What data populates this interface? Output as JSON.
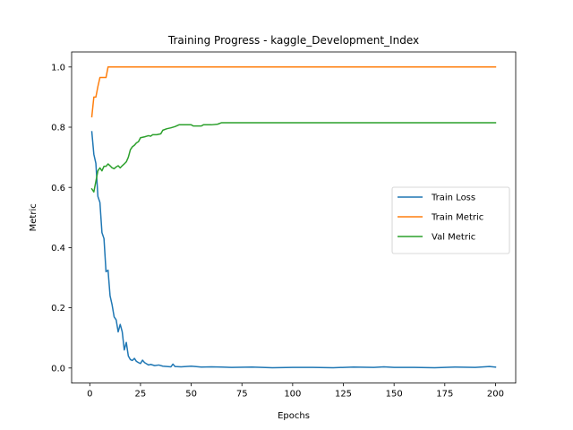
{
  "chart_data": {
    "type": "line",
    "title": "Training Progress - kaggle_Development_Index",
    "xlabel": "Epochs",
    "ylabel": "Metric",
    "xlim": [
      -8.95,
      209.95
    ],
    "ylim": [
      -0.05,
      1.05
    ],
    "xticks": [
      0,
      25,
      50,
      75,
      100,
      125,
      150,
      175,
      200
    ],
    "xtick_labels": [
      "0",
      "25",
      "50",
      "75",
      "100",
      "125",
      "150",
      "175",
      "200"
    ],
    "yticks": [
      0.0,
      0.2,
      0.4,
      0.6,
      0.8,
      1.0
    ],
    "ytick_labels": [
      "0.0",
      "0.2",
      "0.4",
      "0.6",
      "0.8",
      "1.0"
    ],
    "grid": false,
    "legend_position": "center-right",
    "series": [
      {
        "name": "Train Loss",
        "color": "#1f77b4",
        "points": [
          [
            1,
            0.785
          ],
          [
            2,
            0.71
          ],
          [
            3,
            0.68
          ],
          [
            4,
            0.57
          ],
          [
            5,
            0.55
          ],
          [
            6,
            0.45
          ],
          [
            7,
            0.43
          ],
          [
            8,
            0.32
          ],
          [
            9,
            0.325
          ],
          [
            10,
            0.24
          ],
          [
            11,
            0.21
          ],
          [
            12,
            0.17
          ],
          [
            13,
            0.16
          ],
          [
            14,
            0.12
          ],
          [
            15,
            0.145
          ],
          [
            16,
            0.12
          ],
          [
            17,
            0.06
          ],
          [
            18,
            0.085
          ],
          [
            19,
            0.04
          ],
          [
            20,
            0.028
          ],
          [
            21,
            0.025
          ],
          [
            22,
            0.032
          ],
          [
            23,
            0.022
          ],
          [
            24,
            0.018
          ],
          [
            25,
            0.015
          ],
          [
            26,
            0.026
          ],
          [
            27,
            0.018
          ],
          [
            28,
            0.014
          ],
          [
            29,
            0.01
          ],
          [
            30,
            0.012
          ],
          [
            32,
            0.008
          ],
          [
            34,
            0.01
          ],
          [
            36,
            0.006
          ],
          [
            38,
            0.005
          ],
          [
            40,
            0.004
          ],
          [
            41,
            0.013
          ],
          [
            42,
            0.005
          ],
          [
            45,
            0.004
          ],
          [
            50,
            0.006
          ],
          [
            55,
            0.003
          ],
          [
            60,
            0.004
          ],
          [
            65,
            0.003
          ],
          [
            70,
            0.002
          ],
          [
            80,
            0.003
          ],
          [
            90,
            0.001
          ],
          [
            100,
            0.002
          ],
          [
            110,
            0.002
          ],
          [
            120,
            0.001
          ],
          [
            130,
            0.003
          ],
          [
            140,
            0.002
          ],
          [
            145,
            0.004
          ],
          [
            150,
            0.002
          ],
          [
            160,
            0.002
          ],
          [
            170,
            0.001
          ],
          [
            180,
            0.003
          ],
          [
            190,
            0.002
          ],
          [
            197,
            0.005
          ],
          [
            200,
            0.003
          ]
        ]
      },
      {
        "name": "Train Metric",
        "color": "#ff7f0e",
        "points": [
          [
            1,
            0.835
          ],
          [
            2,
            0.9
          ],
          [
            3,
            0.9
          ],
          [
            4,
            0.935
          ],
          [
            5,
            0.965
          ],
          [
            6,
            0.965
          ],
          [
            7,
            0.965
          ],
          [
            8,
            0.965
          ],
          [
            9,
            1.0
          ],
          [
            10,
            1.0
          ],
          [
            20,
            1.0
          ],
          [
            50,
            1.0
          ],
          [
            100,
            1.0
          ],
          [
            150,
            1.0
          ],
          [
            200,
            1.0
          ]
        ]
      },
      {
        "name": "Val Metric",
        "color": "#2ca02c",
        "points": [
          [
            1,
            0.595
          ],
          [
            2,
            0.585
          ],
          [
            3,
            0.62
          ],
          [
            4,
            0.655
          ],
          [
            5,
            0.665
          ],
          [
            6,
            0.655
          ],
          [
            7,
            0.67
          ],
          [
            8,
            0.67
          ],
          [
            9,
            0.678
          ],
          [
            10,
            0.672
          ],
          [
            11,
            0.665
          ],
          [
            12,
            0.662
          ],
          [
            13,
            0.668
          ],
          [
            14,
            0.672
          ],
          [
            15,
            0.665
          ],
          [
            16,
            0.672
          ],
          [
            17,
            0.678
          ],
          [
            18,
            0.685
          ],
          [
            19,
            0.7
          ],
          [
            20,
            0.725
          ],
          [
            21,
            0.735
          ],
          [
            22,
            0.74
          ],
          [
            23,
            0.748
          ],
          [
            24,
            0.752
          ],
          [
            25,
            0.765
          ],
          [
            27,
            0.768
          ],
          [
            28,
            0.77
          ],
          [
            29,
            0.772
          ],
          [
            30,
            0.77
          ],
          [
            31,
            0.775
          ],
          [
            33,
            0.775
          ],
          [
            35,
            0.778
          ],
          [
            36,
            0.79
          ],
          [
            38,
            0.795
          ],
          [
            40,
            0.798
          ],
          [
            42,
            0.802
          ],
          [
            44,
            0.808
          ],
          [
            48,
            0.808
          ],
          [
            50,
            0.808
          ],
          [
            51,
            0.804
          ],
          [
            55,
            0.804
          ],
          [
            56,
            0.808
          ],
          [
            60,
            0.808
          ],
          [
            63,
            0.81
          ],
          [
            65,
            0.815
          ],
          [
            70,
            0.815
          ],
          [
            100,
            0.815
          ],
          [
            150,
            0.815
          ],
          [
            200,
            0.815
          ]
        ]
      }
    ]
  }
}
